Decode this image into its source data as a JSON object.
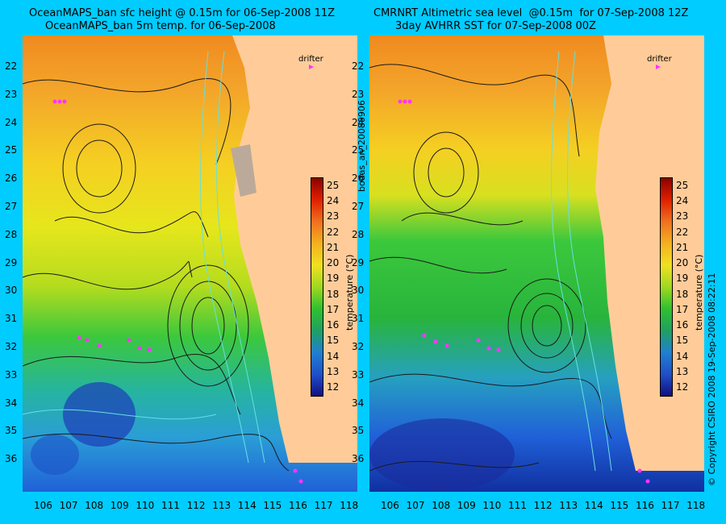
{
  "left": {
    "title_line1": "OceanMAPS_ban sfc height @ 0.15m for 06-Sep-2008 11Z",
    "title_line2": "OceanMAPS_ban 5m temp. for 06-Sep-2008"
  },
  "right": {
    "title_line1": "CMRNRT Altimetric sea level  @0.15m  for 07-Sep-2008 12Z",
    "title_line2": "3day AVHRR SST for 07-Sep-2008 00Z"
  },
  "drifter_label": "drifter",
  "colorbar": {
    "ticks": [
      "25",
      "24",
      "23",
      "22",
      "21",
      "20",
      "19",
      "18",
      "17",
      "16",
      "15",
      "14",
      "13",
      "12"
    ],
    "label": "temperature (°C)"
  },
  "lat_ticks": [
    "22",
    "23",
    "24",
    "25",
    "26",
    "27",
    "28",
    "29",
    "30",
    "31",
    "32",
    "33",
    "34",
    "35",
    "36"
  ],
  "lon_ticks": [
    "106",
    "107",
    "108",
    "109",
    "110",
    "111",
    "112",
    "113",
    "114",
    "115",
    "116",
    "117",
    "118"
  ],
  "side_label": "bodas_an_20080906",
  "copyright": "© Copyright CSIRO 2008   19-Sep-2008 08:22:11",
  "colors": {
    "background": "#00ccff",
    "land": "#ffcc99",
    "drifter": "#ff33ff"
  }
}
